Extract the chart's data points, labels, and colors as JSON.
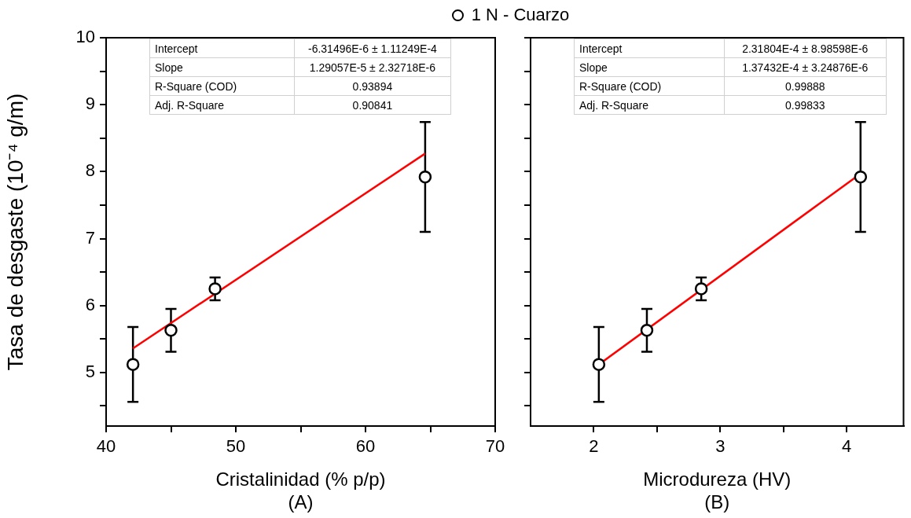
{
  "chart_data": [
    {
      "type": "scatter",
      "xlabel": "Cristalinidad (% p/p)\n(A)",
      "ylabel": "Tasa de desgaste (10⁻⁴ g/m)",
      "xlim": [
        40,
        70
      ],
      "xticks": [
        40,
        {
          "value": 45,
          "label": null
        },
        50,
        {
          "value": 55,
          "label": null
        },
        60,
        {
          "value": 65,
          "label": null
        },
        70
      ],
      "ylim": [
        4.2,
        10
      ],
      "yticks": [
        {
          "value": 4.5,
          "label": null
        },
        5,
        {
          "value": 5.5,
          "label": null
        },
        6,
        {
          "value": 6.5,
          "label": null
        },
        7,
        {
          "value": 7.5,
          "label": null
        },
        8,
        {
          "value": 8.5,
          "label": null
        },
        9,
        {
          "value": 9.5,
          "label": null
        },
        10
      ],
      "legend": "top",
      "grid": false,
      "annotations": [
        "Intercept",
        "-6.31496E-6 ± 1.11249E-4",
        "Slope",
        "1.29057E-5 ± 2.32718E-6",
        "R-Square (COD)",
        "0.93894",
        "Adj. R-Square",
        "0.90841"
      ],
      "series": [
        {
          "name": "1 N - Cuarzo",
          "marker": "circle",
          "color": "#000000",
          "x": [
            42.07,
            45.0,
            48.4,
            64.6
          ],
          "values": [
            5.12,
            5.63,
            6.25,
            7.92
          ],
          "errors": [
            0.56,
            0.32,
            0.17,
            0.82
          ]
        },
        {
          "type": "line",
          "marker": "none",
          "color": "#ff0000",
          "x": [
            42.07,
            64.6
          ],
          "values": [
            5.36,
            8.27
          ]
        }
      ]
    },
    {
      "type": "scatter",
      "xlabel": "Microdureza (HV)\n(B)",
      "xlim": [
        1.5,
        4.45
      ],
      "xticks": [
        2,
        {
          "value": 2.5,
          "label": null
        },
        3,
        {
          "value": 3.5,
          "label": null
        },
        4
      ],
      "ylim": [
        4.2,
        10
      ],
      "yticks": [
        {
          "value": 4.5,
          "label": null
        },
        5,
        {
          "value": 5.5,
          "label": null
        },
        6,
        {
          "value": 6.5,
          "label": null
        },
        7,
        {
          "value": 7.5,
          "label": null
        },
        8,
        {
          "value": 8.5,
          "label": null
        },
        9,
        {
          "value": 9.5,
          "label": null
        },
        10
      ],
      "tick_labels": "x",
      "grid": false,
      "annotations": [
        "Intercept",
        "2.31804E-4 ± 8.98598E-6",
        "Slope",
        "1.37432E-4 ± 3.24876E-6",
        "R-Square (COD)",
        "0.99888",
        "Adj. R-Square",
        "0.99833"
      ],
      "series": [
        {
          "marker": "circle",
          "color": "#000000",
          "x": [
            2.04,
            2.42,
            2.85,
            4.11
          ],
          "values": [
            5.12,
            5.63,
            6.25,
            7.92
          ],
          "errors": [
            0.56,
            0.32,
            0.17,
            0.82
          ]
        },
        {
          "type": "line",
          "marker": "none",
          "color": "#ff0000",
          "x": [
            2.04,
            4.11
          ],
          "values": [
            5.12,
            7.97
          ]
        }
      ]
    }
  ]
}
